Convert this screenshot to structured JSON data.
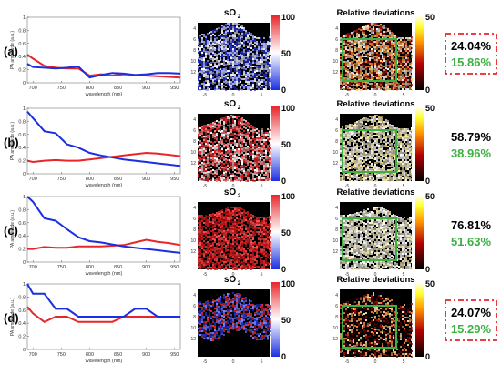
{
  "figure": {
    "colors": {
      "red": "#e8262a",
      "blue": "#1a2fe0",
      "green": "#3cb043",
      "dashed_box": "#e8262a"
    }
  },
  "chart_data": [
    {
      "type": "line",
      "panel": "(a)",
      "xlabel": "wavelength (nm)",
      "ylabel": "PA amplitude (a.u.)",
      "xlim": [
        690,
        960
      ],
      "ylim": [
        0,
        1
      ],
      "xticks": [
        700,
        750,
        800,
        850,
        900,
        950
      ],
      "yticks": [
        0,
        0.2,
        0.4,
        0.6,
        0.8,
        1
      ],
      "x": [
        690,
        700,
        720,
        740,
        760,
        780,
        800,
        820,
        840,
        860,
        880,
        900,
        920,
        940,
        960
      ],
      "series": [
        {
          "color": "red",
          "values": [
            0.43,
            0.37,
            0.26,
            0.23,
            0.22,
            0.22,
            0.11,
            0.13,
            0.11,
            0.13,
            0.12,
            0.11,
            0.1,
            0.09,
            0.08
          ]
        },
        {
          "color": "blue",
          "values": [
            0.29,
            0.24,
            0.23,
            0.22,
            0.23,
            0.25,
            0.08,
            0.12,
            0.15,
            0.14,
            0.12,
            0.13,
            0.15,
            0.15,
            0.14
          ]
        }
      ]
    },
    {
      "type": "line",
      "panel": "(b)",
      "xlabel": "wavelength (nm)",
      "ylabel": "PA amplitude (a.u.)",
      "xlim": [
        690,
        960
      ],
      "ylim": [
        0,
        1
      ],
      "xticks": [
        700,
        750,
        800,
        850,
        900,
        950
      ],
      "yticks": [
        0,
        0.2,
        0.4,
        0.6,
        0.8,
        1
      ],
      "x": [
        690,
        700,
        720,
        740,
        760,
        780,
        800,
        820,
        840,
        860,
        880,
        900,
        920,
        940,
        960
      ],
      "series": [
        {
          "color": "red",
          "values": [
            0.2,
            0.18,
            0.2,
            0.21,
            0.2,
            0.2,
            0.22,
            0.24,
            0.26,
            0.28,
            0.3,
            0.32,
            0.31,
            0.29,
            0.27
          ]
        },
        {
          "color": "blue",
          "values": [
            0.95,
            0.85,
            0.65,
            0.62,
            0.45,
            0.4,
            0.32,
            0.28,
            0.25,
            0.22,
            0.2,
            0.18,
            0.16,
            0.14,
            0.12
          ]
        }
      ]
    },
    {
      "type": "line",
      "panel": "(c)",
      "xlabel": "wavelength (nm)",
      "ylabel": "PA amplitude (a.u.)",
      "xlim": [
        690,
        960
      ],
      "ylim": [
        0,
        1
      ],
      "xticks": [
        700,
        750,
        800,
        850,
        900,
        950
      ],
      "yticks": [
        0,
        0.2,
        0.4,
        0.6,
        0.8,
        1
      ],
      "x": [
        690,
        700,
        720,
        740,
        760,
        780,
        800,
        820,
        840,
        860,
        880,
        900,
        920,
        940,
        960
      ],
      "series": [
        {
          "color": "red",
          "values": [
            0.2,
            0.2,
            0.23,
            0.22,
            0.22,
            0.24,
            0.24,
            0.24,
            0.25,
            0.26,
            0.3,
            0.34,
            0.31,
            0.29,
            0.26
          ]
        },
        {
          "color": "blue",
          "values": [
            1.0,
            0.92,
            0.67,
            0.63,
            0.5,
            0.38,
            0.32,
            0.3,
            0.27,
            0.24,
            0.22,
            0.2,
            0.18,
            0.16,
            0.14
          ]
        }
      ]
    },
    {
      "type": "line",
      "panel": "(d)",
      "xlabel": "wavelength (nm)",
      "ylabel": "PA amplitude (a.u.)",
      "xlim": [
        690,
        960
      ],
      "ylim": [
        0,
        1
      ],
      "xticks": [
        700,
        750,
        800,
        850,
        900,
        950
      ],
      "yticks": [
        0,
        0.2,
        0.4,
        0.6,
        0.8,
        1
      ],
      "x": [
        690,
        700,
        720,
        740,
        760,
        780,
        800,
        820,
        840,
        860,
        880,
        900,
        920,
        940,
        960
      ],
      "series": [
        {
          "color": "red",
          "values": [
            0.65,
            0.55,
            0.42,
            0.5,
            0.5,
            0.42,
            0.42,
            0.42,
            0.42,
            0.5,
            0.5,
            0.5,
            0.5,
            0.5,
            0.5
          ]
        },
        {
          "color": "blue",
          "values": [
            1.0,
            0.85,
            0.85,
            0.62,
            0.62,
            0.5,
            0.5,
            0.5,
            0.5,
            0.5,
            0.62,
            0.62,
            0.5,
            0.5,
            0.5
          ]
        }
      ]
    },
    {
      "type": "heatmap",
      "title": "sO2",
      "panel_labels": [
        "(a)",
        "(b)",
        "(c)",
        "(d)"
      ],
      "colormap": "blue-white-red",
      "colorbar": {
        "ticks": [
          "100",
          "50",
          "0"
        ],
        "range": [
          0,
          100
        ]
      },
      "xticks": [
        "-5",
        "0",
        "5"
      ],
      "yticks": [
        "4",
        "6",
        "8",
        "10",
        "12"
      ]
    },
    {
      "type": "heatmap",
      "title": "Relative deviations",
      "panel_labels": [
        "(a)",
        "(b)",
        "(c)",
        "(d)"
      ],
      "colormap": "black-red-yellow-white",
      "colorbar": {
        "ticks": [
          "50",
          "0"
        ],
        "range": [
          0,
          50
        ]
      },
      "xticks": [
        "-5",
        "0",
        "5"
      ],
      "yticks": [
        "4",
        "6",
        "8",
        "10",
        "12"
      ],
      "annotations": [
        {
          "panel": "(a)",
          "primary": "24.04%",
          "secondary": "15.86%",
          "dashed_box": true
        },
        {
          "panel": "(b)",
          "primary": "58.79%",
          "secondary": "38.96%",
          "dashed_box": false
        },
        {
          "panel": "(c)",
          "primary": "76.81%",
          "secondary": "51.63%",
          "dashed_box": false
        },
        {
          "panel": "(d)",
          "primary": "24.07%",
          "secondary": "15.29%",
          "dashed_box": true
        }
      ]
    }
  ]
}
